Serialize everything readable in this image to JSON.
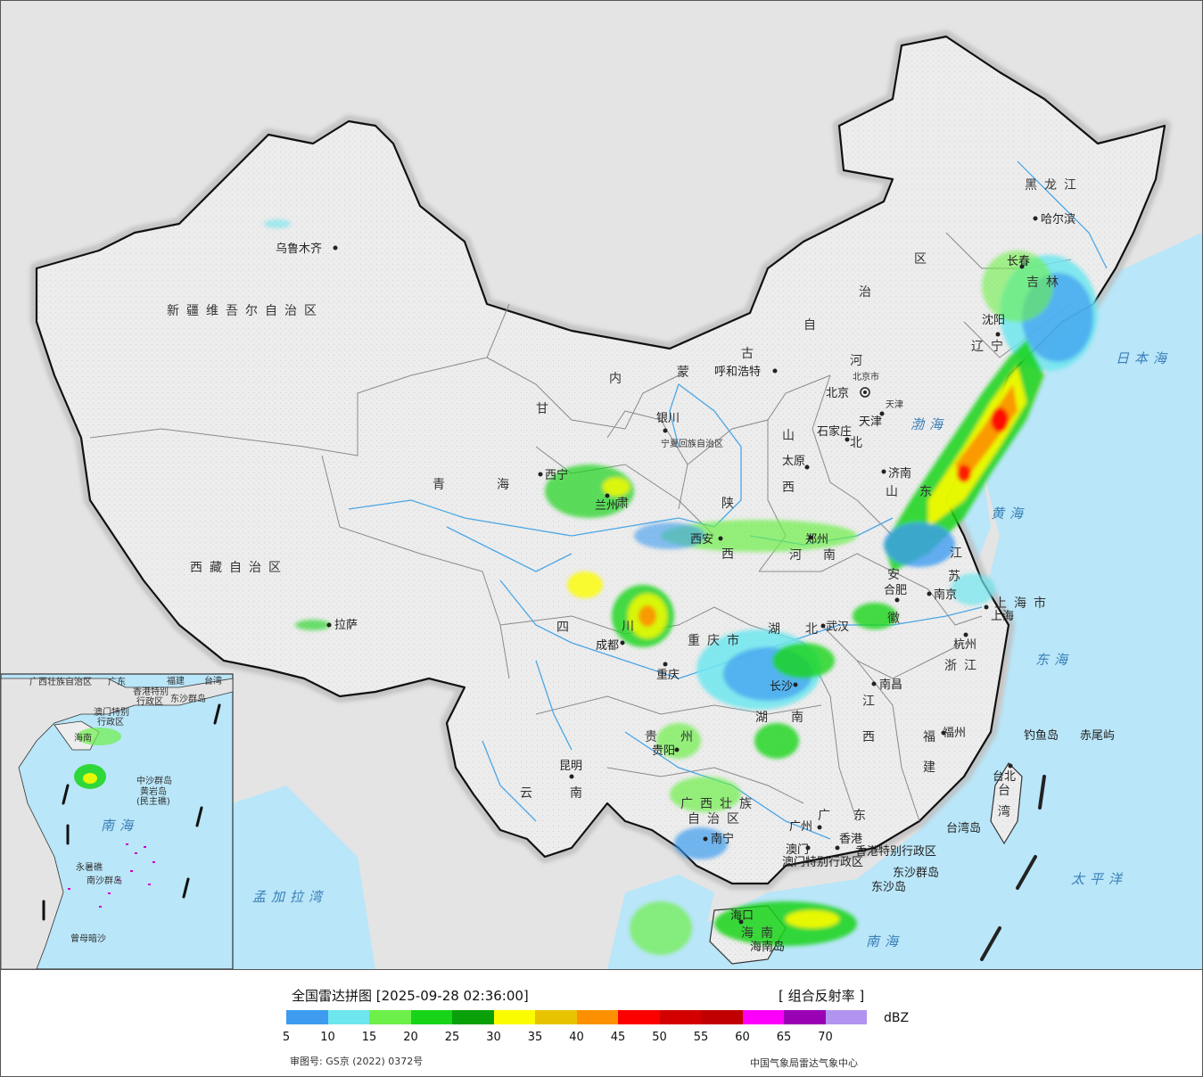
{
  "regions": {
    "xinjiang": "新疆维吾尔自治区",
    "xizang": "西藏自治区",
    "qinghai": [
      "青",
      "海"
    ],
    "gansu": [
      "甘",
      "肃"
    ],
    "neimenggu": [
      "内",
      "蒙",
      "古",
      "自",
      "治",
      "区"
    ],
    "heilongjiang": "黑龙江",
    "jilin": "吉林",
    "liaoning": "辽宁",
    "hebei": [
      "河",
      "北"
    ],
    "shanxi": [
      "山",
      "西"
    ],
    "shaanxi": [
      "陕",
      "西"
    ],
    "sichuan": [
      "四",
      "川"
    ],
    "yunnan": [
      "云",
      "南"
    ],
    "guizhou": [
      "贵",
      "州"
    ],
    "chongqing": "重庆市",
    "hubei": [
      "湖",
      "北"
    ],
    "hunan": [
      "湖",
      "南"
    ],
    "henan": [
      "河",
      "南"
    ],
    "shandong": [
      "山",
      "东"
    ],
    "jiangsu": [
      "江",
      "苏"
    ],
    "anhui": [
      "安",
      "徽"
    ],
    "zhejiang": "浙江",
    "jiangxi": [
      "江",
      "西"
    ],
    "fujian": [
      "福",
      "建"
    ],
    "guangdong": [
      "广",
      "东"
    ],
    "guangxi_1": "广西壮族",
    "guangxi_2": "自治区",
    "hainan": "海南",
    "taiwan": [
      "台",
      "湾"
    ],
    "shanghai": "上海市",
    "tianjin": "天津",
    "beijing_small": "北京市",
    "ningxia": "宁夏回族自治区",
    "hk": "香港特别行政区",
    "macao": "澳门特别行政区"
  },
  "cities": {
    "urumqi": "乌鲁木齐",
    "lhasa": "拉萨",
    "xining": "西宁",
    "lanzhou": "兰州",
    "yinchuan": "银川",
    "hohhot": "呼和浩特",
    "beijing": "北京",
    "tianjin": "天津",
    "shijiazhuang": "石家庄",
    "taiyuan": "太原",
    "jinan": "济南",
    "zhengzhou": "郑州",
    "xian": "西安",
    "chengdu": "成都",
    "chongqing": "重庆",
    "wuhan": "武汉",
    "hefei": "合肥",
    "nanjing": "南京",
    "shanghai": "上海",
    "hangzhou": "杭州",
    "nanchang": "南昌",
    "changsha": "长沙",
    "guiyang": "贵阳",
    "kunming": "昆明",
    "nanning": "南宁",
    "guangzhou": "广州",
    "hongkong": "香港",
    "macau": "澳门",
    "fuzhou": "福州",
    "taipei": "台北",
    "haikou": "海口",
    "harbin": "哈尔滨",
    "changchun": "长春",
    "shenyang": "沈阳"
  },
  "seas": {
    "japan": "日本海",
    "bohai": "渤海",
    "huanghai": "黄海",
    "donghai": "东海",
    "pacific": "太平洋",
    "nanhai": "南海",
    "bengal": "孟加拉湾"
  },
  "islands": {
    "diaoyu": "钓鱼岛",
    "chiwei": "赤尾屿",
    "taiwan_island": "台湾岛",
    "dongsha_qundao": "东沙群岛",
    "dongsha_dao": "东沙岛",
    "hainan_dao": "海南岛"
  },
  "inset": {
    "guangxi": "广西壮族自治区",
    "guangdong": "广东",
    "fujian": "福建",
    "taiwan": "台湾",
    "hk": "香港特别",
    "hk2": "行政区",
    "macao": "澳门特别",
    "macao2": "行政区",
    "dongsha": "东沙群岛",
    "hainan": "海南",
    "zhongsha": "中沙群岛",
    "huangyan": "黄岩岛",
    "huangyan2": "(民主礁)",
    "nanhai": "南海",
    "yongshu": "永暑礁",
    "nansha": "南沙群岛",
    "zengmu": "曾母暗沙"
  },
  "legend": {
    "title": "全国雷达拼图 [2025-09-28 02:36:00]",
    "product": "[ 组合反射率 ]",
    "unit": "dBZ",
    "colors": [
      "#3d9cf0",
      "#6ee6ee",
      "#6ef04a",
      "#18d418",
      "#0aa00a",
      "#fcfc00",
      "#e8c400",
      "#fc9000",
      "#fc0000",
      "#d40000",
      "#c00000",
      "#fc00fc",
      "#9a00b4",
      "#b294f0"
    ],
    "ticks": [
      "5",
      "10",
      "15",
      "20",
      "25",
      "30",
      "35",
      "40",
      "45",
      "50",
      "55",
      "60",
      "65",
      "70"
    ],
    "approval": "审图号: GS京 (2022) 0372号",
    "publisher": "中国气象局雷达气象中心"
  }
}
